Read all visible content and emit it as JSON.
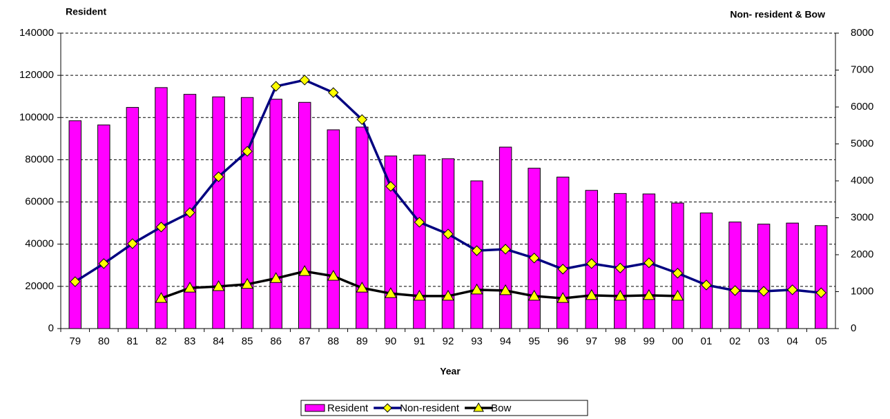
{
  "chart_data": {
    "type": "bar_line",
    "y_title": "Resident",
    "y2_title": "Non- resident & Bow",
    "x_title": "Year",
    "categories": [
      "79",
      "80",
      "81",
      "82",
      "83",
      "84",
      "85",
      "86",
      "87",
      "88",
      "89",
      "90",
      "91",
      "92",
      "93",
      "94",
      "95",
      "96",
      "97",
      "98",
      "99",
      "00",
      "01",
      "02",
      "03",
      "04",
      "05"
    ],
    "series": [
      {
        "name": "Resident",
        "type": "bar",
        "color": "#ff00ff",
        "values": [
          98500,
          96500,
          104800,
          114200,
          111000,
          109800,
          109500,
          108700,
          107200,
          94200,
          95500,
          81800,
          82200,
          80500,
          70000,
          86000,
          76000,
          71800,
          65500,
          64000,
          63800,
          59500,
          54800,
          50500,
          49500,
          50000,
          48800
        ]
      },
      {
        "name": "Non-resident",
        "type": "line",
        "axis": "y2",
        "color": "#000080",
        "marker": "diamond",
        "values": [
          1270,
          1760,
          2300,
          2750,
          3140,
          4110,
          4800,
          6560,
          6730,
          6390,
          5660,
          3850,
          2880,
          2560,
          2110,
          2150,
          1910,
          1610,
          1760,
          1640,
          1780,
          1500,
          1180,
          1030,
          1010,
          1050,
          970
        ]
      },
      {
        "name": "Bow",
        "type": "line",
        "axis": "y2",
        "color": "#000000",
        "marker": "triangle",
        "values": [
          null,
          null,
          null,
          820,
          1100,
          1140,
          1200,
          1360,
          1550,
          1420,
          1100,
          950,
          880,
          880,
          1050,
          1030,
          880,
          820,
          900,
          880,
          900,
          880,
          null,
          null,
          null,
          null,
          null
        ]
      }
    ],
    "ylim": [
      0,
      140000
    ],
    "yticks": [
      0,
      20000,
      40000,
      60000,
      80000,
      100000,
      120000,
      140000
    ],
    "y2lim": [
      0,
      8000
    ],
    "y2ticks": [
      0,
      1000,
      2000,
      3000,
      4000,
      5000,
      6000,
      7000,
      8000
    ],
    "grid": true,
    "legend": "bottom"
  }
}
